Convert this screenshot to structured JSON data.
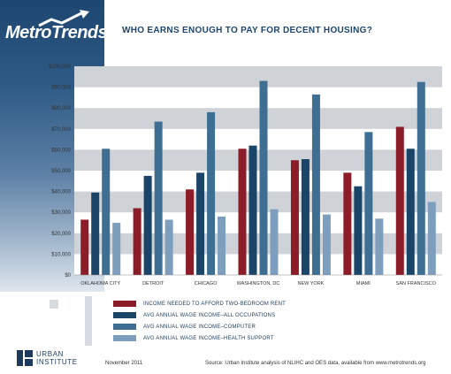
{
  "brand": {
    "logo_text": "MetroTrends",
    "headline": "WHO EARNS ENOUGH TO PAY FOR DECENT HOUSING?"
  },
  "footer": {
    "org_line1": "URBAN",
    "org_line2": "INSTITUTE",
    "date": "November 2011",
    "source": "Source: Urban Institute analysis of NLIHC and OES data, available from www.metrotrends.org"
  },
  "colors": {
    "rent": "#8c1c28",
    "all": "#1a4468",
    "computer": "#3e6f92",
    "health": "#7d9fbd"
  },
  "chart_data": {
    "type": "bar",
    "title": "WHO EARNS ENOUGH TO PAY FOR DECENT HOUSING?",
    "xlabel": "",
    "ylabel": "",
    "ylim": [
      0,
      100000
    ],
    "yticks": [
      "$0",
      "$10,000",
      "$20,000",
      "$30,000",
      "$40,000",
      "$50,000",
      "$60,000",
      "$70,000",
      "$80,000",
      "$90,000",
      "$100,000"
    ],
    "categories": [
      "OKLAHOMA CITY",
      "DETROIT",
      "CHICAGO",
      "WASHINGTON, DC",
      "NEW YORK",
      "MIAMI",
      "SAN FRANCISCO"
    ],
    "series": [
      {
        "name": "INCOME NEEDED TO AFFORD TWO-BEDROOM RENT",
        "color": "#8c1c28",
        "values": [
          26500,
          32000,
          41000,
          60500,
          55000,
          49000,
          71000
        ]
      },
      {
        "name": "AVG ANNUAL WAGE INCOME–ALL OCCUPATIONS",
        "color": "#1a4468",
        "values": [
          39500,
          47500,
          49000,
          62000,
          55500,
          42500,
          60500
        ]
      },
      {
        "name": "AVG ANNUAL WAGE INCOME–COMPUTER",
        "color": "#3e6f92",
        "values": [
          60500,
          73500,
          78000,
          93000,
          86500,
          68500,
          92500
        ]
      },
      {
        "name": "AVG ANNUAL WAGE INCOME–HEALTH SUPPORT",
        "color": "#7d9fbd",
        "values": [
          25000,
          26500,
          28000,
          31500,
          29000,
          27000,
          35000
        ]
      }
    ],
    "grid": true,
    "legend": "bottom"
  }
}
